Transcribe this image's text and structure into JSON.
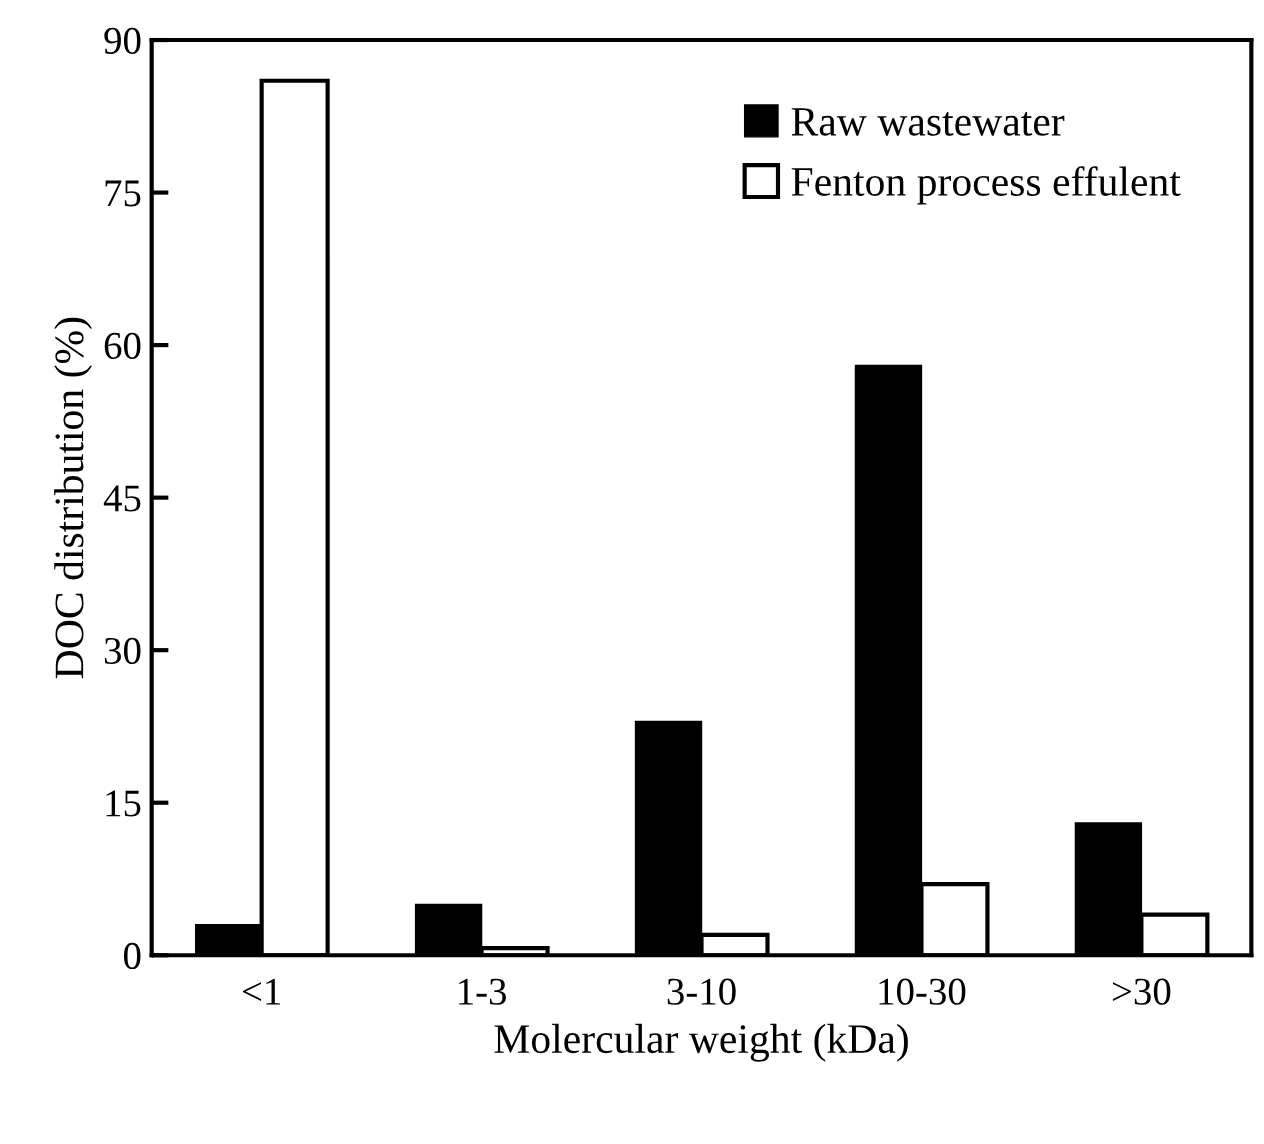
{
  "chart_data": {
    "type": "bar",
    "xlabel": "Molercular weight (kDa)",
    "ylabel": "DOC distribution (%)",
    "categories": [
      "<1",
      "1-3",
      "3-10",
      "10-30",
      ">30"
    ],
    "series": [
      {
        "name": "Raw wastewater",
        "color": "#000000",
        "values": [
          3,
          5,
          23,
          58,
          13
        ]
      },
      {
        "name": "Fenton process effulent",
        "color": "#ffffff",
        "values": [
          86,
          0.7,
          2,
          7,
          4
        ]
      }
    ],
    "ylim": [
      0,
      90
    ],
    "yticks": [
      0,
      15,
      30,
      45,
      60,
      75,
      90
    ],
    "grid": false,
    "legend": "top right"
  }
}
